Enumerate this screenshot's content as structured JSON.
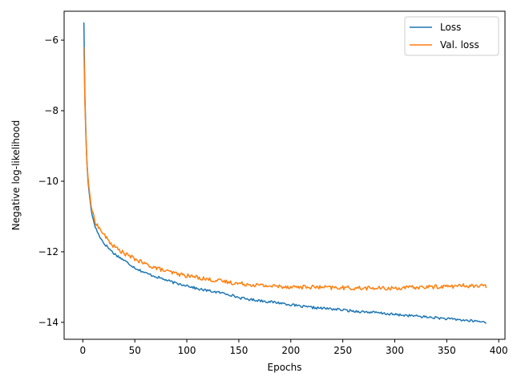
{
  "chart_data": {
    "type": "line",
    "title": "",
    "xlabel": "Epochs",
    "ylabel": "Negative log-likelihood",
    "xlim": [
      -18,
      406
    ],
    "ylim": [
      -14.48,
      -5.18
    ],
    "xticks": [
      0,
      50,
      100,
      150,
      200,
      250,
      300,
      350,
      400
    ],
    "yticks": [
      -14,
      -12,
      -10,
      -8,
      -6
    ],
    "xtick_labels": [
      "0",
      "50",
      "100",
      "150",
      "200",
      "250",
      "300",
      "350",
      "400"
    ],
    "ytick_labels": [
      "−14",
      "−12",
      "−10",
      "−8",
      "−6"
    ],
    "grid": false,
    "legend_position": "top-right",
    "n_epochs": 388,
    "series": [
      {
        "name": "Loss",
        "color": "#1f77b4",
        "x": [
          1,
          2,
          3,
          4,
          5,
          6,
          8,
          10,
          12,
          15,
          20,
          25,
          30,
          40,
          50,
          60,
          70,
          80,
          90,
          100,
          110,
          120,
          130,
          140,
          150,
          160,
          170,
          180,
          190,
          200,
          210,
          220,
          230,
          240,
          250,
          260,
          270,
          280,
          290,
          300,
          310,
          320,
          330,
          340,
          350,
          360,
          370,
          380,
          388
        ],
        "y": [
          -5.5,
          -7.6,
          -8.7,
          -9.5,
          -10.0,
          -10.3,
          -10.8,
          -11.1,
          -11.3,
          -11.5,
          -11.75,
          -11.9,
          -12.05,
          -12.25,
          -12.45,
          -12.6,
          -12.7,
          -12.8,
          -12.9,
          -12.95,
          -13.05,
          -13.1,
          -13.15,
          -13.2,
          -13.3,
          -13.35,
          -13.38,
          -13.42,
          -13.45,
          -13.5,
          -13.55,
          -13.58,
          -13.6,
          -13.62,
          -13.65,
          -13.68,
          -13.7,
          -13.72,
          -13.75,
          -13.78,
          -13.8,
          -13.82,
          -13.85,
          -13.87,
          -13.9,
          -13.92,
          -13.95,
          -13.97,
          -14.0
        ]
      },
      {
        "name": "Val. loss",
        "color": "#ff7f0e",
        "x": [
          1,
          2,
          3,
          4,
          5,
          6,
          8,
          10,
          12,
          15,
          20,
          25,
          30,
          40,
          50,
          60,
          70,
          80,
          90,
          100,
          110,
          120,
          130,
          140,
          150,
          160,
          170,
          180,
          190,
          200,
          210,
          220,
          230,
          240,
          250,
          260,
          270,
          280,
          290,
          300,
          310,
          320,
          330,
          340,
          350,
          360,
          370,
          380,
          388
        ],
        "y": [
          -6.2,
          -7.8,
          -8.8,
          -9.5,
          -9.9,
          -10.2,
          -10.7,
          -10.95,
          -11.15,
          -11.3,
          -11.5,
          -11.7,
          -11.85,
          -12.05,
          -12.2,
          -12.35,
          -12.45,
          -12.55,
          -12.62,
          -12.68,
          -12.72,
          -12.78,
          -12.82,
          -12.86,
          -12.9,
          -12.92,
          -12.95,
          -12.97,
          -12.98,
          -12.99,
          -13.0,
          -13.0,
          -13.01,
          -13.02,
          -13.02,
          -13.03,
          -13.03,
          -13.03,
          -13.04,
          -13.03,
          -13.02,
          -13.01,
          -13.0,
          -12.99,
          -12.98,
          -12.97,
          -12.96,
          -12.97,
          -12.98
        ]
      }
    ]
  }
}
